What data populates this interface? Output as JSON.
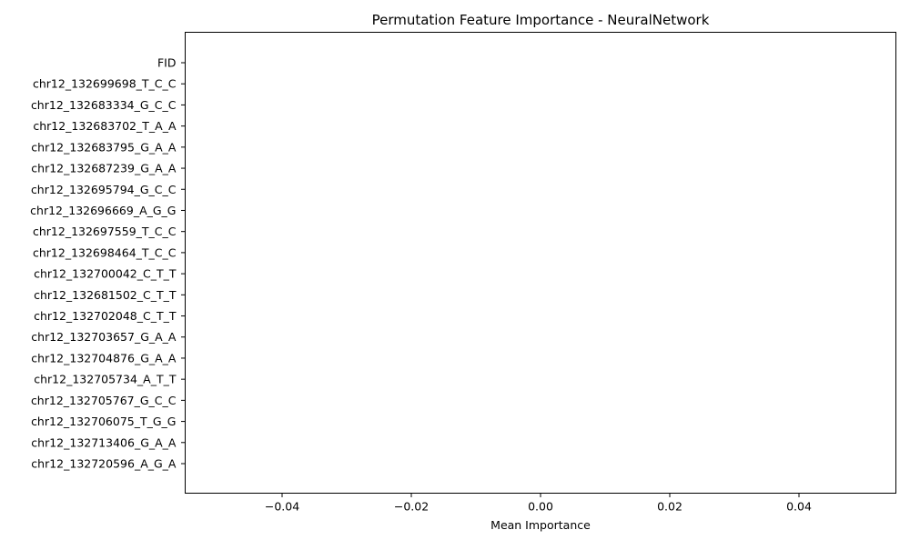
{
  "chart_data": {
    "type": "bar",
    "orientation": "horizontal",
    "title": "Permutation Feature Importance - NeuralNetwork",
    "xlabel": "Mean Importance",
    "ylabel": "",
    "categories": [
      "FID",
      "chr12_132699698_T_C_C",
      "chr12_132683334_G_C_C",
      "chr12_132683702_T_A_A",
      "chr12_132683795_G_A_A",
      "chr12_132687239_G_A_A",
      "chr12_132695794_G_C_C",
      "chr12_132696669_A_G_G",
      "chr12_132697559_T_C_C",
      "chr12_132698464_T_C_C",
      "chr12_132700042_C_T_T",
      "chr12_132681502_C_T_T",
      "chr12_132702048_C_T_T",
      "chr12_132703657_G_A_A",
      "chr12_132704876_G_A_A",
      "chr12_132705734_A_T_T",
      "chr12_132705767_G_C_C",
      "chr12_132706075_T_G_G",
      "chr12_132713406_G_A_A",
      "chr12_132720596_A_G_A"
    ],
    "values": [
      0,
      0,
      0,
      0,
      0,
      0,
      0,
      0,
      0,
      0,
      0,
      0,
      0,
      0,
      0,
      0,
      0,
      0,
      0,
      0
    ],
    "xlim": [
      -0.055,
      0.055
    ],
    "xticks": [
      -0.04,
      -0.02,
      0.0,
      0.02,
      0.04
    ],
    "xtick_labels": [
      "−0.04",
      "−0.02",
      "0.00",
      "0.02",
      "0.04"
    ],
    "grid": false,
    "bar_color": "#1f77b4"
  }
}
